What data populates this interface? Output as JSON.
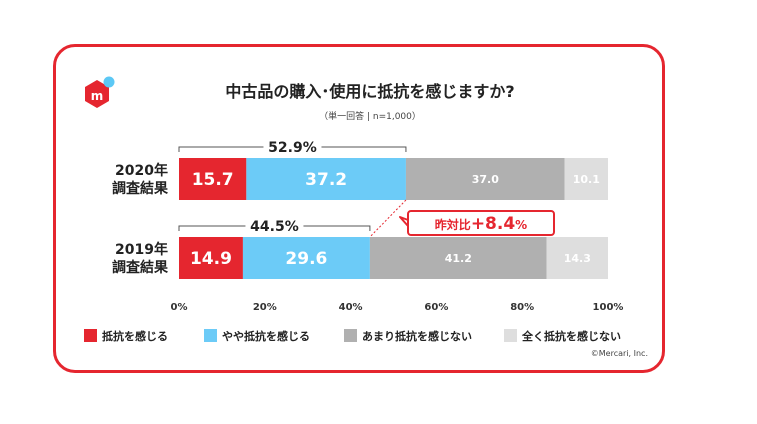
{
  "brand": {
    "logo_letter": "m",
    "logo_color": "#e5262f",
    "logo_dot_color": "#5cc8f5"
  },
  "copyright": "©Mercari, Inc.",
  "chart_data": {
    "type": "bar",
    "orientation": "horizontal",
    "stacked": true,
    "title": "中古品の購入･使用に抵抗を感じますか?",
    "subtitle": "（単一回答 | n=1,000）",
    "categories": [
      "2020年\n調査結果",
      "2019年\n調査結果"
    ],
    "category_lines": [
      [
        "2020年",
        "調査結果"
      ],
      [
        "2019年",
        "調査結果"
      ]
    ],
    "xlim": [
      0,
      100
    ],
    "x_ticks": [
      "0%",
      "20%",
      "40%",
      "60%",
      "80%",
      "100%"
    ],
    "series": [
      {
        "name": "抵抗を感じる",
        "values": [
          15.7,
          14.9
        ],
        "color": "#e5262f",
        "label_color": "#ffffff"
      },
      {
        "name": "やや抵抗を感じる",
        "values": [
          37.2,
          29.6
        ],
        "color": "#6ccbf7",
        "label_color": "#ffffff"
      },
      {
        "name": "あまり抵抗を感じない",
        "values": [
          37.0,
          41.2
        ],
        "color": "#b0b0b0",
        "label_color": "#ffffff"
      },
      {
        "name": "全く抵抗を感じない",
        "values": [
          10.1,
          14.3
        ],
        "color": "#dedede",
        "label_color": "#ffffff"
      }
    ],
    "value_labels": [
      [
        "15.7",
        "37.2",
        "37.0",
        "10.1"
      ],
      [
        "14.9",
        "29.6",
        "41.2",
        "14.3"
      ]
    ],
    "bracket_totals": [
      "52.9%",
      "44.5%"
    ],
    "bracket_values": [
      52.9,
      44.5
    ],
    "annotation": {
      "prefix": "昨対比",
      "value": "+8.4",
      "unit": "%"
    },
    "legend_position": "bottom",
    "grid": false
  }
}
